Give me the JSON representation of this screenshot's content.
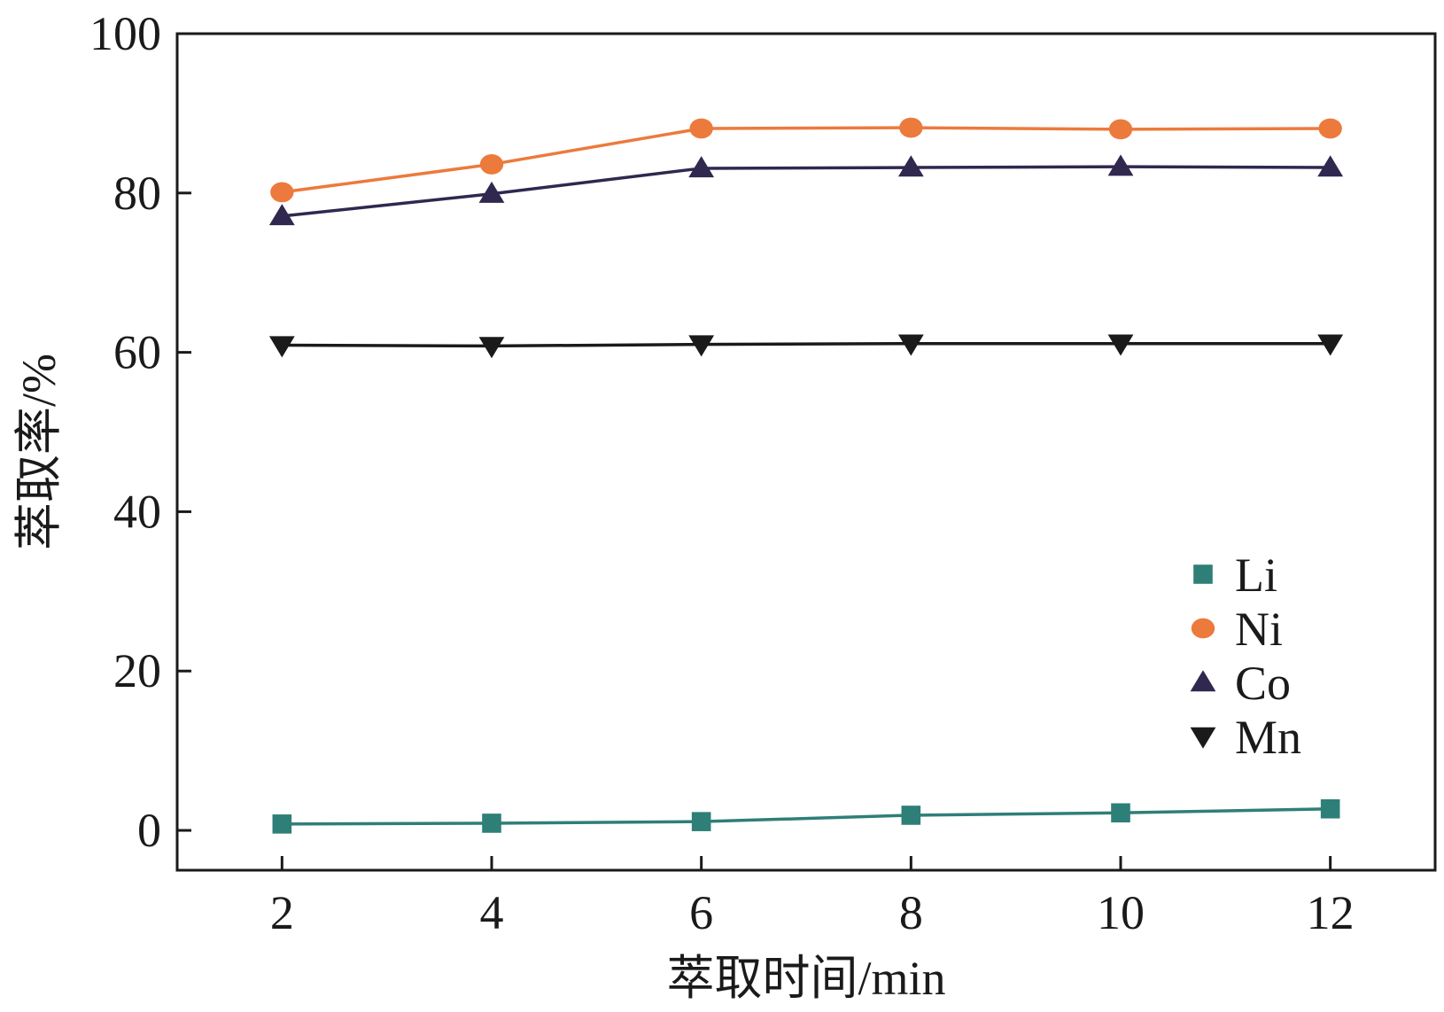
{
  "chart_data": {
    "type": "line",
    "title": "",
    "xlabel": "萃取时间/min",
    "ylabel": "萃取率/%",
    "x": [
      2,
      4,
      6,
      8,
      10,
      12
    ],
    "xticks": [
      "2",
      "4",
      "6",
      "8",
      "10",
      "12"
    ],
    "yticks": [
      "0",
      "20",
      "40",
      "60",
      "80",
      "100"
    ],
    "xlim": [
      1,
      13
    ],
    "ylim": [
      -5,
      100
    ],
    "grid": false,
    "legend_position": "right",
    "series": [
      {
        "name": "Li",
        "marker": "square",
        "color": "#2e7f78",
        "values": [
          0.8,
          0.9,
          1.1,
          1.9,
          2.2,
          2.7
        ]
      },
      {
        "name": "Ni",
        "marker": "circle",
        "color": "#ec7a3c",
        "values": [
          80.1,
          83.6,
          88.1,
          88.2,
          88.0,
          88.1
        ]
      },
      {
        "name": "Co",
        "marker": "triangle-up",
        "color": "#30284f",
        "values": [
          77.1,
          79.9,
          83.1,
          83.2,
          83.3,
          83.2
        ]
      },
      {
        "name": "Mn",
        "marker": "triangle-down",
        "color": "#1a1a1a",
        "values": [
          60.9,
          60.8,
          61.0,
          61.1,
          61.1,
          61.1
        ]
      }
    ]
  }
}
